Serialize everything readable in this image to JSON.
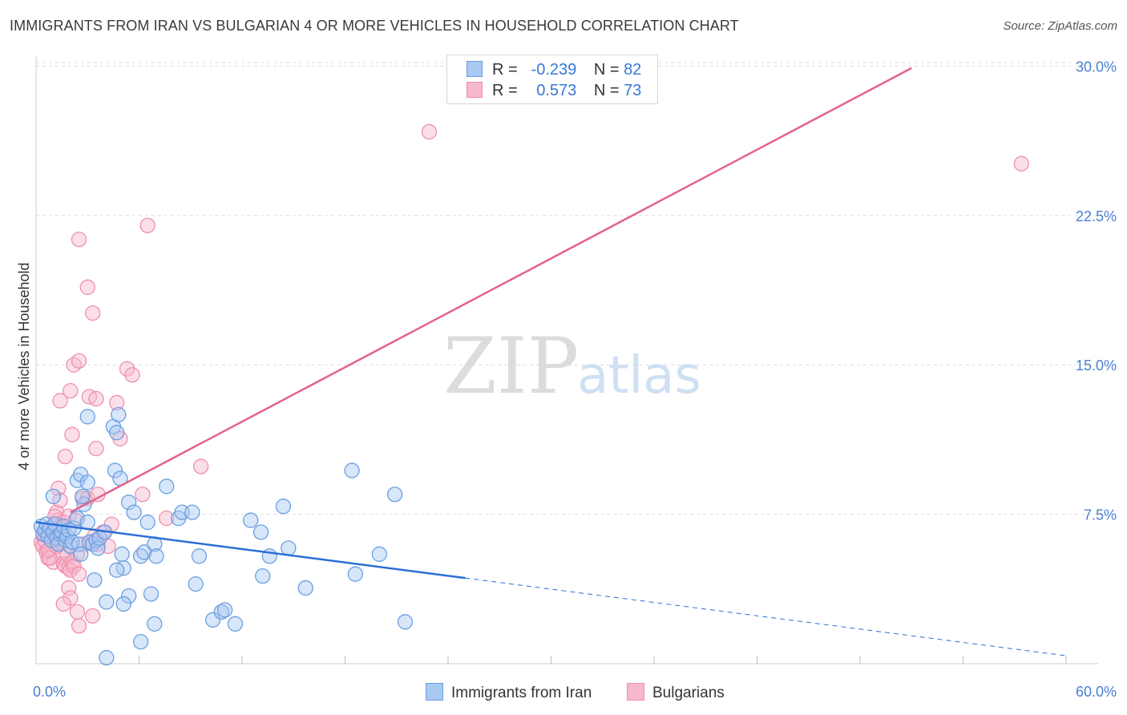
{
  "title": "IMMIGRANTS FROM IRAN VS BULGARIAN 4 OR MORE VEHICLES IN HOUSEHOLD CORRELATION CHART",
  "source": "Source: ZipAtlas.com",
  "watermark": {
    "zip": "ZIP",
    "atlas": "atlas"
  },
  "legend": {
    "rows": [
      {
        "r_label": "R =",
        "r_value": "-0.239",
        "n_label": "N =",
        "n_value": "82"
      },
      {
        "r_label": "R =",
        "r_value": "0.573",
        "n_label": "N =",
        "n_value": "73"
      }
    ]
  },
  "bottom_legend": {
    "iran": "Immigrants from Iran",
    "bulgarians": "Bulgarians"
  },
  "colors": {
    "iran_fill": "#a9c8f2",
    "iran_stroke": "#6a9fe0",
    "iran_line": "#2b6fd6",
    "bulg_fill": "#f7b8cc",
    "bulg_stroke": "#ee8fae",
    "bulg_line": "#e4628e",
    "tick": "#4a7fd4",
    "grid": "#dedede"
  },
  "chart_data": {
    "type": "scatter",
    "xlabel": "",
    "ylabel": "4 or more Vehicles in Household",
    "xlim": [
      0,
      60
    ],
    "ylim": [
      0,
      30.5
    ],
    "x_tick_labels": [
      "0.0%",
      "60.0%"
    ],
    "y_ticks": [
      7.5,
      15.0,
      22.5,
      30.0
    ],
    "y_tick_labels": [
      "7.5%",
      "15.0%",
      "22.5%",
      "30.0%"
    ],
    "grid": true,
    "series": [
      {
        "name": "Immigrants from Iran",
        "r": -0.239,
        "n": 82,
        "trend": {
          "x0": 0,
          "y0": 7.1,
          "x1": 25,
          "y1": 4.3,
          "dash_to_x": 60,
          "dash_to_y": 0.4
        },
        "points": [
          [
            0.3,
            6.9
          ],
          [
            0.4,
            6.5
          ],
          [
            0.5,
            6.7
          ],
          [
            0.6,
            7.0
          ],
          [
            0.7,
            6.4
          ],
          [
            0.8,
            6.8
          ],
          [
            0.9,
            6.2
          ],
          [
            1.0,
            6.6
          ],
          [
            1.1,
            7.0
          ],
          [
            1.2,
            6.3
          ],
          [
            1.3,
            6.0
          ],
          [
            1.4,
            6.5
          ],
          [
            1.5,
            6.6
          ],
          [
            1.6,
            6.9
          ],
          [
            1.7,
            6.2
          ],
          [
            1.8,
            6.4
          ],
          [
            1.9,
            6.7
          ],
          [
            2.0,
            5.9
          ],
          [
            2.1,
            6.1
          ],
          [
            2.2,
            6.8
          ],
          [
            2.4,
            7.3
          ],
          [
            2.5,
            6.0
          ],
          [
            2.6,
            5.5
          ],
          [
            2.8,
            8.0
          ],
          [
            3.0,
            7.1
          ],
          [
            1.0,
            8.4
          ],
          [
            2.4,
            9.2
          ],
          [
            2.6,
            9.5
          ],
          [
            2.7,
            8.4
          ],
          [
            3.0,
            9.1
          ],
          [
            3.1,
            6.1
          ],
          [
            3.3,
            6.0
          ],
          [
            3.5,
            6.2
          ],
          [
            3.6,
            5.8
          ],
          [
            3.7,
            6.3
          ],
          [
            4.0,
            6.6
          ],
          [
            3.0,
            12.4
          ],
          [
            4.5,
            11.9
          ],
          [
            4.7,
            11.6
          ],
          [
            4.8,
            12.5
          ],
          [
            4.6,
            9.7
          ],
          [
            4.9,
            9.3
          ],
          [
            5.0,
            5.5
          ],
          [
            5.1,
            4.8
          ],
          [
            4.7,
            4.7
          ],
          [
            5.4,
            8.1
          ],
          [
            5.7,
            7.6
          ],
          [
            6.1,
            5.4
          ],
          [
            6.3,
            5.6
          ],
          [
            6.5,
            7.1
          ],
          [
            6.9,
            6.0
          ],
          [
            7.0,
            5.4
          ],
          [
            6.7,
            3.5
          ],
          [
            7.6,
            8.9
          ],
          [
            6.1,
            1.1
          ],
          [
            6.9,
            2.0
          ],
          [
            5.4,
            3.4
          ],
          [
            5.1,
            3.0
          ],
          [
            4.1,
            3.1
          ],
          [
            3.4,
            4.2
          ],
          [
            8.3,
            7.3
          ],
          [
            8.5,
            7.6
          ],
          [
            9.1,
            7.6
          ],
          [
            9.5,
            5.4
          ],
          [
            9.3,
            4.0
          ],
          [
            10.3,
            2.2
          ],
          [
            10.8,
            2.6
          ],
          [
            11.0,
            2.7
          ],
          [
            11.6,
            2.0
          ],
          [
            12.5,
            7.2
          ],
          [
            13.1,
            6.6
          ],
          [
            13.6,
            5.4
          ],
          [
            13.2,
            4.4
          ],
          [
            14.4,
            7.9
          ],
          [
            14.7,
            5.8
          ],
          [
            15.7,
            3.8
          ],
          [
            18.4,
            9.7
          ],
          [
            18.6,
            4.5
          ],
          [
            20.0,
            5.5
          ],
          [
            20.9,
            8.5
          ],
          [
            21.5,
            2.1
          ],
          [
            4.1,
            0.3
          ]
        ]
      },
      {
        "name": "Bulgarians",
        "r": 0.573,
        "n": 73,
        "trend": {
          "x0": 2,
          "y0": 7.6,
          "x1": 51,
          "y1": 29.9
        },
        "points": [
          [
            0.3,
            6.1
          ],
          [
            0.4,
            5.9
          ],
          [
            0.5,
            6.2
          ],
          [
            0.6,
            5.6
          ],
          [
            0.7,
            5.3
          ],
          [
            0.8,
            5.8
          ],
          [
            0.9,
            6.0
          ],
          [
            1.0,
            5.1
          ],
          [
            1.1,
            6.4
          ],
          [
            1.2,
            7.6
          ],
          [
            1.3,
            7.2
          ],
          [
            1.4,
            6.9
          ],
          [
            1.5,
            5.4
          ],
          [
            1.6,
            5.0
          ],
          [
            1.7,
            4.9
          ],
          [
            1.8,
            5.5
          ],
          [
            1.9,
            4.8
          ],
          [
            2.0,
            4.7
          ],
          [
            2.1,
            5.1
          ],
          [
            2.2,
            4.9
          ],
          [
            0.8,
            5.3
          ],
          [
            0.6,
            6.6
          ],
          [
            1.0,
            6.3
          ],
          [
            1.1,
            7.4
          ],
          [
            1.3,
            8.8
          ],
          [
            1.4,
            8.2
          ],
          [
            1.6,
            7.1
          ],
          [
            1.9,
            7.4
          ],
          [
            2.3,
            7.2
          ],
          [
            2.7,
            8.3
          ],
          [
            3.0,
            8.3
          ],
          [
            3.2,
            6.1
          ],
          [
            3.4,
            6.4
          ],
          [
            3.6,
            6.0
          ],
          [
            3.9,
            6.6
          ],
          [
            4.4,
            7.0
          ],
          [
            2.4,
            5.5
          ],
          [
            2.5,
            4.5
          ],
          [
            1.9,
            3.8
          ],
          [
            2.0,
            3.3
          ],
          [
            1.6,
            3.0
          ],
          [
            2.4,
            2.6
          ],
          [
            3.3,
            2.4
          ],
          [
            2.5,
            1.9
          ],
          [
            1.4,
            13.2
          ],
          [
            1.7,
            10.4
          ],
          [
            2.0,
            13.7
          ],
          [
            2.1,
            11.5
          ],
          [
            2.2,
            15.0
          ],
          [
            2.5,
            15.2
          ],
          [
            3.1,
            13.4
          ],
          [
            3.5,
            13.3
          ],
          [
            3.5,
            10.8
          ],
          [
            3.6,
            8.5
          ],
          [
            4.7,
            13.1
          ],
          [
            4.9,
            11.3
          ],
          [
            5.3,
            14.8
          ],
          [
            5.6,
            14.5
          ],
          [
            2.5,
            21.3
          ],
          [
            3.0,
            18.9
          ],
          [
            3.3,
            17.6
          ],
          [
            6.5,
            22.0
          ],
          [
            6.2,
            8.5
          ],
          [
            7.6,
            7.3
          ],
          [
            9.6,
            9.9
          ],
          [
            22.9,
            26.7
          ],
          [
            57.4,
            25.1
          ],
          [
            0.5,
            6.5
          ],
          [
            0.7,
            5.7
          ],
          [
            1.2,
            5.9
          ],
          [
            2.8,
            6.0
          ],
          [
            4.2,
            5.9
          ],
          [
            1.5,
            6.1
          ]
        ]
      }
    ]
  }
}
